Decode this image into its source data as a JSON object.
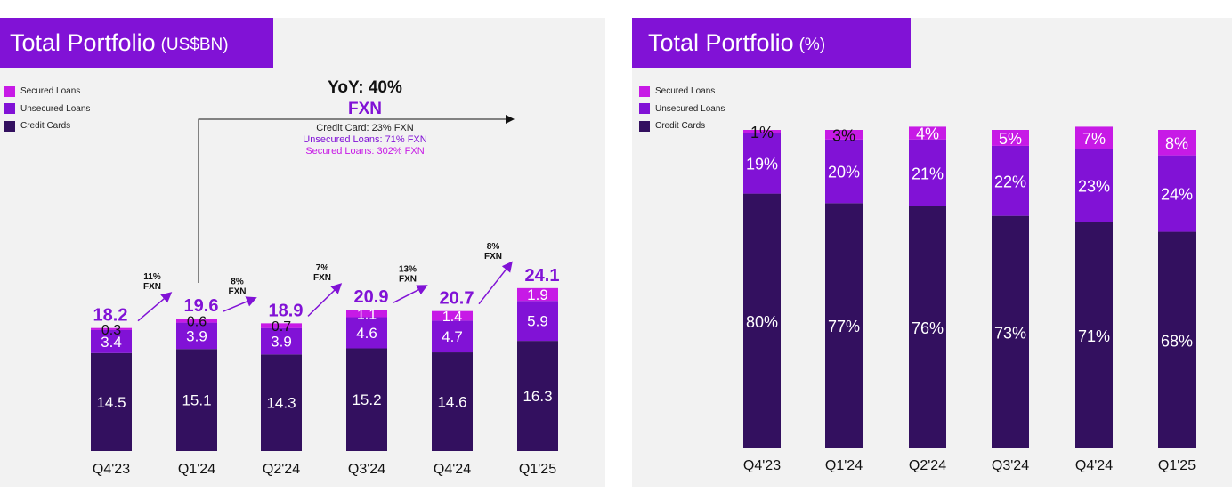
{
  "colors": {
    "banner": "#8112d6",
    "secured": "#c71ae6",
    "unsecured": "#8112d6",
    "credit": "#33105f",
    "total_label": "#8112d6",
    "arrow": "#8112d6"
  },
  "left": {
    "title": "Total Portfolio",
    "unit": "(US$BN)",
    "legend": [
      "Secured Loans",
      "Unsecured Loans",
      "Credit Cards"
    ],
    "yoy": {
      "headline": "YoY: 40%",
      "sub": "FXN",
      "notes": [
        {
          "text": "Credit Card: 23% FXN",
          "color": "#222222"
        },
        {
          "text": "Unsecured Loans: 71% FXN",
          "color": "#8112d6"
        },
        {
          "text": "Secured Loans: 302% FXN",
          "color": "#c71ae6"
        }
      ]
    },
    "growth": [
      {
        "pct": "11%",
        "label": "FXN"
      },
      {
        "pct": "8%",
        "label": "FXN"
      },
      {
        "pct": "7%",
        "label": "FXN"
      },
      {
        "pct": "13%",
        "label": "FXN"
      },
      {
        "pct": "8%",
        "label": "FXN"
      }
    ]
  },
  "right": {
    "title": "Total Portfolio",
    "unit": "(%)",
    "legend": [
      "Secured Loans",
      "Unsecured Loans",
      "Credit Cards"
    ]
  },
  "chart_data": [
    {
      "type": "bar",
      "stacked": true,
      "title": "Total Portfolio (US$BN)",
      "categories": [
        "Q4'23",
        "Q1'24",
        "Q2'24",
        "Q3'24",
        "Q4'24",
        "Q1'25"
      ],
      "series": [
        {
          "name": "Credit Cards",
          "values": [
            14.5,
            15.1,
            14.3,
            15.2,
            14.6,
            16.3
          ],
          "labels": [
            "14.5",
            "15.1",
            "14.3",
            "15.2",
            "14.6",
            "16.3"
          ]
        },
        {
          "name": "Unsecured Loans",
          "values": [
            3.4,
            3.9,
            3.9,
            4.6,
            4.7,
            5.9
          ],
          "labels": [
            "3.4",
            "3.9",
            "3.9",
            "4.6",
            "4.7",
            "5.9"
          ]
        },
        {
          "name": "Secured Loans",
          "values": [
            0.3,
            0.6,
            0.7,
            1.1,
            1.4,
            1.9
          ],
          "labels": [
            "0.3",
            "0.6",
            "0.7",
            "1.1",
            "1.4",
            "1.9"
          ]
        }
      ],
      "totals": [
        "18.2",
        "19.6",
        "18.9",
        "20.9",
        "20.7",
        "24.1"
      ],
      "legend_position": "top-left",
      "grid": false
    },
    {
      "type": "bar",
      "stacked": true,
      "title": "Total Portfolio (%)",
      "categories": [
        "Q4'23",
        "Q1'24",
        "Q2'24",
        "Q3'24",
        "Q4'24",
        "Q1'25"
      ],
      "series": [
        {
          "name": "Credit Cards",
          "values": [
            80,
            77,
            76,
            73,
            71,
            68
          ],
          "labels": [
            "80%",
            "77%",
            "76%",
            "73%",
            "71%",
            "68%"
          ]
        },
        {
          "name": "Unsecured Loans",
          "values": [
            19,
            20,
            21,
            22,
            23,
            24
          ],
          "labels": [
            "19%",
            "20%",
            "21%",
            "22%",
            "23%",
            "24%"
          ]
        },
        {
          "name": "Secured Loans",
          "values": [
            1,
            3,
            4,
            5,
            7,
            8
          ],
          "labels": [
            "1%",
            "3%",
            "4%",
            "5%",
            "7%",
            "8%"
          ]
        }
      ],
      "ylim": [
        0,
        100
      ],
      "legend_position": "top-left",
      "grid": false
    }
  ]
}
